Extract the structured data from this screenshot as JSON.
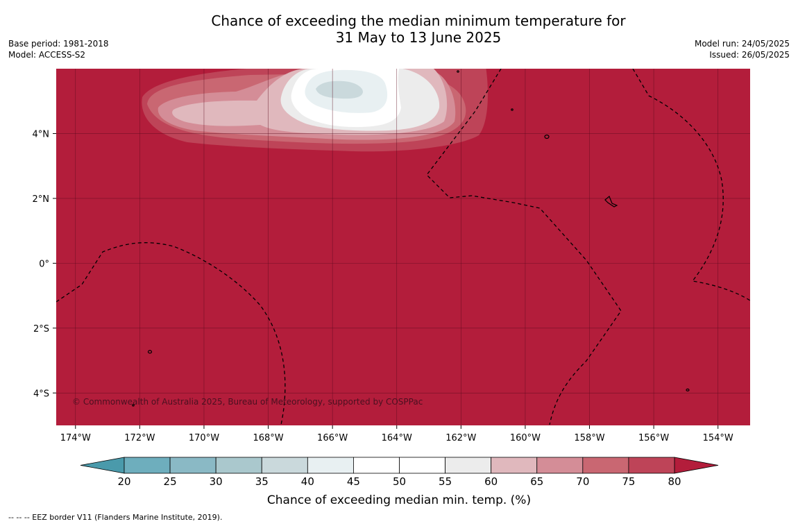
{
  "title": {
    "line1": "Chance of exceeding the median minimum temperature for",
    "line2": "31 May to 13 June 2025"
  },
  "meta": {
    "base_period": "Base period: 1981-2018",
    "model": "Model: ACCESS-S2",
    "model_run": "Model run: 24/05/2025",
    "issued": "Issued: 26/05/2025"
  },
  "map": {
    "lon_range": [
      -174.6,
      -153.0
    ],
    "lat_range": [
      -5.0,
      6.0
    ],
    "x_ticks": [
      "174°W",
      "172°W",
      "170°W",
      "168°W",
      "166°W",
      "164°W",
      "162°W",
      "160°W",
      "158°W",
      "156°W",
      "154°W"
    ],
    "x_tick_values": [
      -174,
      -172,
      -170,
      -168,
      -166,
      -164,
      -162,
      -160,
      -158,
      -156,
      -154
    ],
    "y_ticks": [
      "4°N",
      "2°N",
      "0°",
      "2°S",
      "4°S"
    ],
    "y_tick_values": [
      4,
      2,
      0,
      -2,
      -4
    ],
    "background_color": "#b31d3b",
    "grid": true,
    "copyright": "© Commonwealth of Australia 2025, Bureau of Meteorology, supported by COSPPac"
  },
  "colorbar": {
    "label": "Chance of exceeding median min. temp. (%)",
    "ticks": [
      "20",
      "25",
      "30",
      "35",
      "40",
      "45",
      "50",
      "55",
      "60",
      "65",
      "70",
      "75",
      "80"
    ],
    "colors": [
      "#6eaebd",
      "#8ab9c5",
      "#aac8cd",
      "#cad9dc",
      "#e8f0f2",
      "#ffffff",
      "#ffffff",
      "#ececec",
      "#e0b8bd",
      "#d48d97",
      "#c96772",
      "#be4458"
    ],
    "under_color": "#4a9aab",
    "over_color": "#b31d3b"
  },
  "footnote": "--  --  -- EEZ border V11 (Flanders Marine Institute, 2019)."
}
